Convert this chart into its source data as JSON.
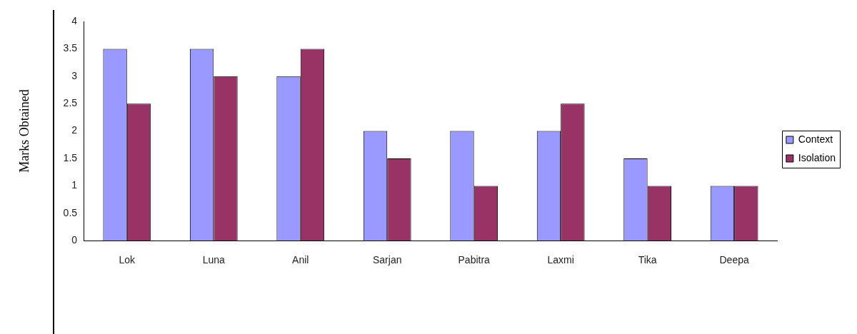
{
  "chart_data": {
    "type": "bar",
    "ylabel": "Marks Obtained",
    "categories": [
      "Lok",
      "Luna",
      "Anil",
      "Sarjan",
      "Pabitra",
      "Laxmi",
      "Tika",
      "Deepa"
    ],
    "series": [
      {
        "name": "Context",
        "color": "#9999ff",
        "values": [
          3.5,
          3.5,
          3,
          2,
          2,
          2,
          1.5,
          1
        ]
      },
      {
        "name": "Isolation",
        "color": "#993366",
        "values": [
          2.5,
          3,
          3.5,
          1.5,
          1,
          2.5,
          1,
          1
        ]
      }
    ],
    "ylim": [
      0,
      4
    ],
    "yticks": [
      0,
      0.5,
      1,
      1.5,
      2,
      2.5,
      3,
      3.5,
      4
    ],
    "grid": false,
    "legend": "right"
  }
}
